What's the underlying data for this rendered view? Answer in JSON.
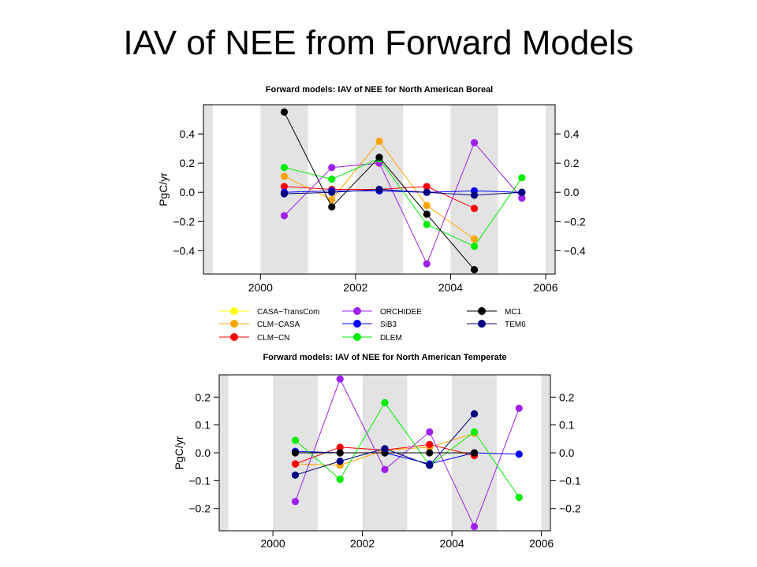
{
  "slide": {
    "title": "IAV of NEE from Forward Models"
  },
  "series_styles": [
    {
      "name": "CASA−TransCom",
      "color": "#ffff00"
    },
    {
      "name": "CLM−CASA",
      "color": "#ffa500"
    },
    {
      "name": "CLM−CN",
      "color": "#ff0000"
    },
    {
      "name": "ORCHIDEE",
      "color": "#a020f0"
    },
    {
      "name": "SiB3",
      "color": "#0000ff"
    },
    {
      "name": "DLEM",
      "color": "#00ee00"
    },
    {
      "name": "MC1",
      "color": "#000000"
    },
    {
      "name": "TEM6",
      "color": "#000080"
    }
  ],
  "chart_data": [
    {
      "type": "line",
      "title": "Forward models: IAV of NEE for North American Boreal",
      "ylabel": "PgC/yr",
      "xlabel": "",
      "xlim": [
        1998.8,
        2006.2
      ],
      "ylim": [
        -0.56,
        0.6
      ],
      "xticks": [
        2000,
        2002,
        2004,
        2006
      ],
      "yticks": [
        -0.4,
        -0.2,
        0.0,
        0.2,
        0.4
      ],
      "ytick_labels": [
        "−0.4",
        "−0.2",
        "0.0",
        "0.2",
        "0.4"
      ],
      "shaded_years": [
        1998,
        2000,
        2002,
        2004,
        2006
      ],
      "grid": false,
      "series": [
        {
          "name": "CLM−CASA",
          "x": [
            2000.5,
            2001.5,
            2002.5,
            2003.5,
            2004.5
          ],
          "values": [
            0.11,
            -0.05,
            0.35,
            -0.09,
            -0.32
          ]
        },
        {
          "name": "CLM−CN",
          "x": [
            2000.5,
            2001.5,
            2002.5,
            2003.5,
            2004.5
          ],
          "values": [
            0.04,
            0.02,
            0.02,
            0.04,
            -0.11
          ]
        },
        {
          "name": "ORCHIDEE",
          "x": [
            2000.5,
            2001.5,
            2002.5,
            2003.5,
            2004.5,
            2005.5
          ],
          "values": [
            -0.16,
            0.17,
            0.2,
            -0.49,
            0.34,
            -0.04
          ]
        },
        {
          "name": "SiB3",
          "x": [
            2000.5,
            2001.5,
            2002.5,
            2003.5,
            2004.5,
            2005.5
          ],
          "values": [
            0.0,
            0.01,
            0.01,
            0.0,
            0.01,
            0.0
          ]
        },
        {
          "name": "DLEM",
          "x": [
            2000.5,
            2001.5,
            2002.5,
            2003.5,
            2004.5,
            2005.5
          ],
          "values": [
            0.17,
            0.09,
            0.23,
            -0.22,
            -0.37,
            0.1
          ]
        },
        {
          "name": "MC1",
          "x": [
            2000.5,
            2001.5,
            2002.5,
            2003.5,
            2004.5
          ],
          "values": [
            0.55,
            -0.1,
            0.24,
            -0.15,
            -0.53
          ]
        },
        {
          "name": "TEM6",
          "x": [
            2000.5,
            2001.5,
            2002.5,
            2003.5,
            2004.5,
            2005.5
          ],
          "values": [
            -0.01,
            0.0,
            0.02,
            0.0,
            -0.02,
            0.0
          ]
        }
      ]
    },
    {
      "type": "line",
      "title": "Forward models: IAV of NEE for North American Temperate",
      "ylabel": "PgC/yr",
      "xlabel": "",
      "xlim": [
        1998.8,
        2006.2
      ],
      "ylim": [
        -0.28,
        0.28
      ],
      "xticks": [
        2000,
        2002,
        2004,
        2006
      ],
      "yticks": [
        -0.2,
        -0.1,
        0.0,
        0.1,
        0.2
      ],
      "ytick_labels": [
        "−0.2",
        "−0.1",
        "0.0",
        "0.1",
        "0.2"
      ],
      "shaded_years": [
        1998,
        2000,
        2002,
        2004,
        2006
      ],
      "grid": false,
      "series": [
        {
          "name": "CLM−CASA",
          "x": [
            2000.5,
            2001.5,
            2002.5,
            2003.5,
            2004.5
          ],
          "values": [
            -0.04,
            -0.045,
            0.01,
            0.02,
            0.07
          ]
        },
        {
          "name": "CLM−CN",
          "x": [
            2000.5,
            2001.5,
            2002.5,
            2003.5,
            2004.5
          ],
          "values": [
            -0.04,
            0.02,
            0.01,
            0.03,
            -0.01
          ]
        },
        {
          "name": "ORCHIDEE",
          "x": [
            2000.5,
            2001.5,
            2002.5,
            2003.5,
            2004.5,
            2005.5
          ],
          "values": [
            -0.175,
            0.265,
            -0.06,
            0.075,
            -0.265,
            0.16
          ]
        },
        {
          "name": "SiB3",
          "x": [
            2000.5,
            2001.5,
            2002.5,
            2003.5,
            2004.5,
            2005.5
          ],
          "values": [
            0.005,
            0.0,
            0.0,
            -0.04,
            0.0,
            -0.005
          ]
        },
        {
          "name": "DLEM",
          "x": [
            2000.5,
            2001.5,
            2002.5,
            2003.5,
            2004.5,
            2005.5
          ],
          "values": [
            0.045,
            -0.095,
            0.18,
            -0.045,
            0.075,
            -0.16
          ]
        },
        {
          "name": "MC1",
          "x": [
            2000.5,
            2001.5,
            2002.5,
            2003.5,
            2004.5
          ],
          "values": [
            0.0,
            0.0,
            0.0,
            0.0,
            0.0
          ]
        },
        {
          "name": "TEM6",
          "x": [
            2000.5,
            2001.5,
            2002.5,
            2003.5,
            2004.5
          ],
          "values": [
            -0.08,
            -0.03,
            0.015,
            -0.045,
            0.14
          ]
        }
      ]
    }
  ]
}
